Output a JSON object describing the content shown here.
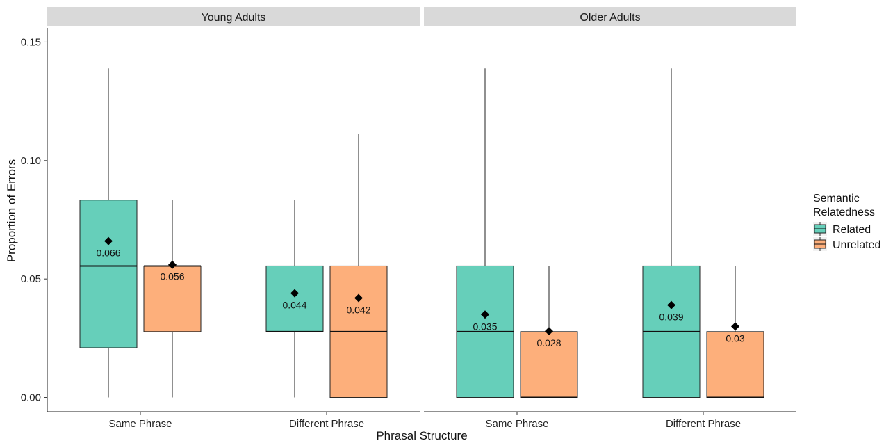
{
  "chart_data": {
    "type": "boxplot",
    "xlabel": "Phrasal Structure",
    "ylabel": "Proportion of Errors",
    "ylim": [
      -0.006,
      0.156
    ],
    "yticks": [
      "0.00",
      "0.05",
      "0.10",
      "0.15"
    ],
    "ytick_values": [
      0,
      0.05,
      0.1,
      0.15
    ],
    "categories": [
      "Same Phrase",
      "Different Phrase"
    ],
    "legend": {
      "title_lines": [
        "Semantic",
        "Relatedness"
      ],
      "placement": "right",
      "entries": [
        {
          "label": "Related",
          "color": "#66CFBA"
        },
        {
          "label": "Unrelated",
          "color": "#FDAF7B"
        }
      ]
    },
    "panels": [
      {
        "title": "Young Adults",
        "groups": [
          {
            "category": "Same Phrase",
            "boxes": [
              {
                "series": "Related",
                "min": 0,
                "q1": 0.021,
                "median": 0.0555,
                "q3": 0.0833,
                "max": 0.1389,
                "mean": 0.066,
                "mean_label": "0.066"
              },
              {
                "series": "Unrelated",
                "min": 0,
                "q1": 0.0278,
                "median": 0.0555,
                "q3": 0.0555,
                "max": 0.0833,
                "mean": 0.056,
                "mean_label": "0.056"
              }
            ]
          },
          {
            "category": "Different Phrase",
            "boxes": [
              {
                "series": "Related",
                "min": 0,
                "q1": 0.0278,
                "median": 0.0278,
                "q3": 0.0555,
                "max": 0.0833,
                "mean": 0.044,
                "mean_label": "0.044"
              },
              {
                "series": "Unrelated",
                "min": 0,
                "q1": 0,
                "median": 0.0278,
                "q3": 0.0555,
                "max": 0.1111,
                "mean": 0.042,
                "mean_label": "0.042"
              }
            ]
          }
        ]
      },
      {
        "title": "Older Adults",
        "groups": [
          {
            "category": "Same Phrase",
            "boxes": [
              {
                "series": "Related",
                "min": 0,
                "q1": 0,
                "median": 0.0278,
                "q3": 0.0555,
                "max": 0.1389,
                "mean": 0.035,
                "mean_label": "0.035"
              },
              {
                "series": "Unrelated",
                "min": 0,
                "q1": 0,
                "median": 0,
                "q3": 0.0278,
                "max": 0.0555,
                "mean": 0.028,
                "mean_label": "0.028"
              }
            ]
          },
          {
            "category": "Different Phrase",
            "boxes": [
              {
                "series": "Related",
                "min": 0,
                "q1": 0,
                "median": 0.0278,
                "q3": 0.0555,
                "max": 0.1389,
                "mean": 0.039,
                "mean_label": "0.039"
              },
              {
                "series": "Unrelated",
                "min": 0,
                "q1": 0,
                "median": 0,
                "q3": 0.0278,
                "max": 0.0555,
                "mean": 0.03,
                "mean_label": "0.03"
              }
            ]
          }
        ]
      }
    ],
    "grid": false
  }
}
